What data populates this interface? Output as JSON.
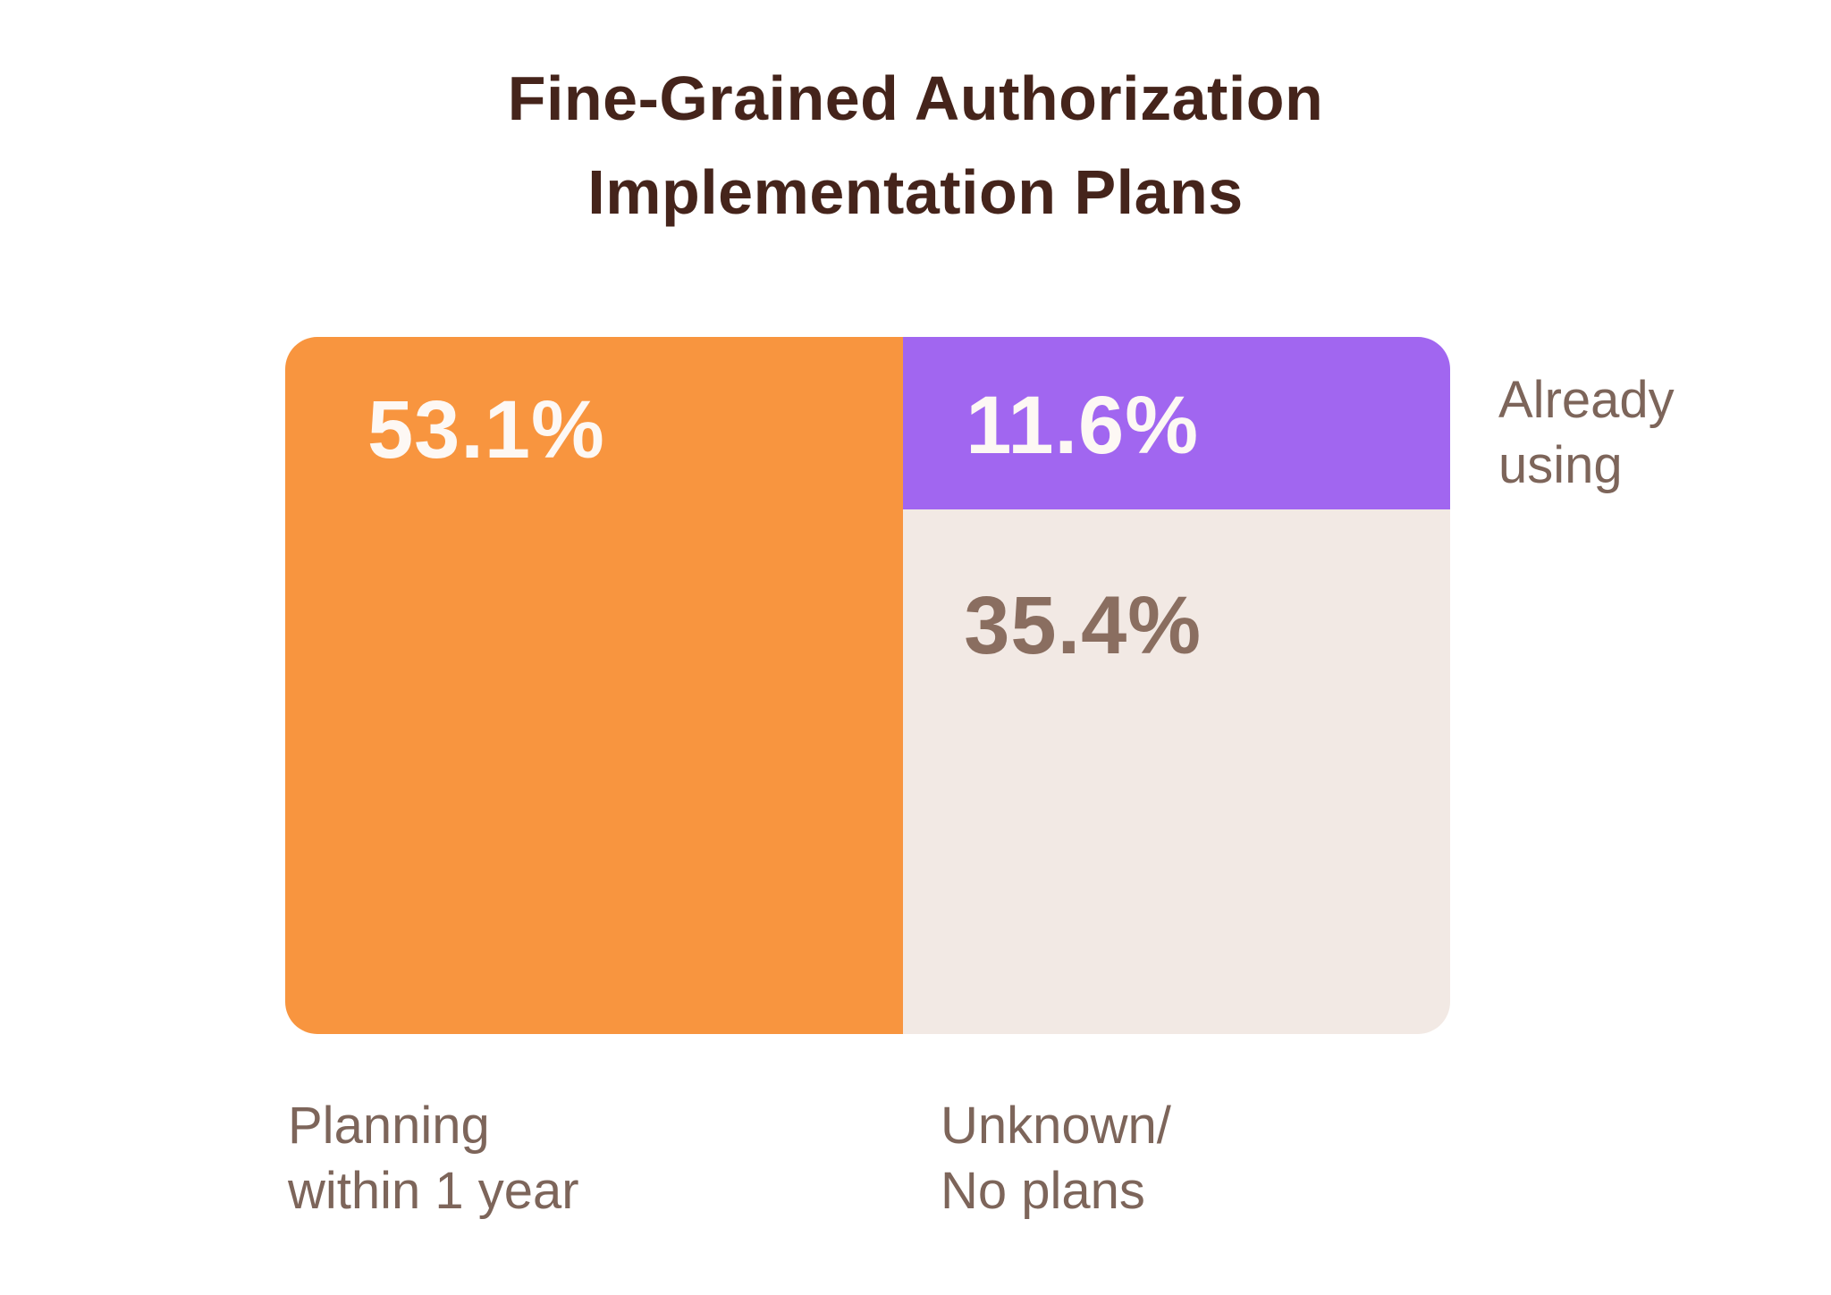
{
  "title": {
    "text": "Fine-Grained Authorization\nImplementation Plans",
    "color": "#45241B"
  },
  "chart": {
    "segments": [
      {
        "id": "planning",
        "pct_label": "53.1%",
        "value": 53.1,
        "label": "Planning\nwithin 1 year",
        "color": "#F8953F",
        "pct_color": "#FDF8F4"
      },
      {
        "id": "already",
        "pct_label": "11.6%",
        "value": 11.6,
        "label": "Already\nusing",
        "color": "#A166F0",
        "pct_color": "#FDF8F4"
      },
      {
        "id": "unknown",
        "pct_label": "35.4%",
        "value": 35.4,
        "label": "Unknown/\nNo plans",
        "color": "#F2E9E4",
        "pct_color": "#8A6E60"
      }
    ],
    "category_label_color": "#7D655A",
    "background": "#FFFFFF"
  },
  "chart_data": {
    "type": "treemap",
    "title": "Fine-Grained Authorization Implementation Plans",
    "segments": [
      {
        "label": "Planning within 1 year",
        "value_pct": 53.1,
        "color": "#F8953F"
      },
      {
        "label": "Already using",
        "value_pct": 11.6,
        "color": "#A166F0"
      },
      {
        "label": "Unknown/No plans",
        "value_pct": 35.4,
        "color": "#F2E9E4"
      }
    ],
    "layout": "single rounded rectangle split: left column full height = Planning within 1 year (orange, 53.1%); right column stacked vertically: Already using (purple, 11.6%) on top, Unknown/No plans (beige, 35.4%) below; percentage labels inside blocks; category labels outside (below left block, below right column, right of purple block)",
    "legend_position": "none",
    "grid": false
  }
}
